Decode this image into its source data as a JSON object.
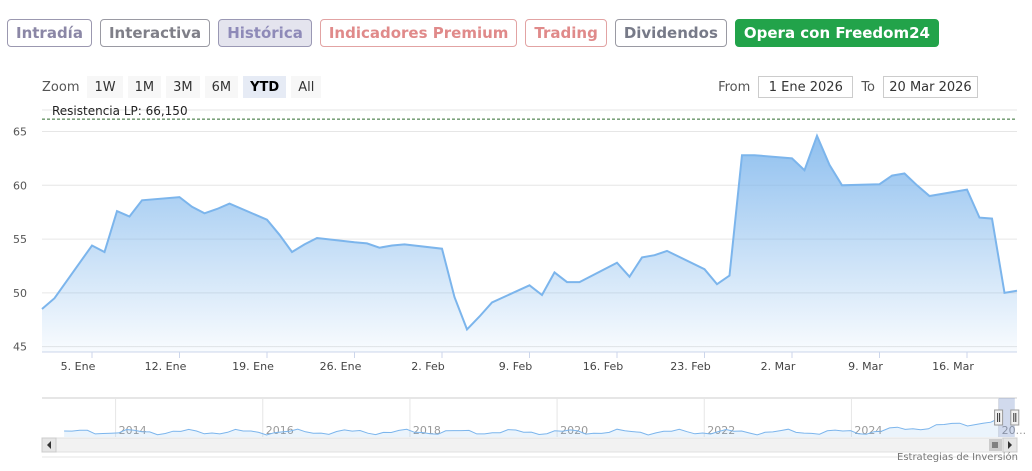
{
  "tabs": [
    {
      "label": "Intradía",
      "cls": "t-intradia"
    },
    {
      "label": "Interactiva",
      "cls": "t-interactiva"
    },
    {
      "label": "Histórica",
      "cls": "t-historica"
    },
    {
      "label": "Indicadores Premium",
      "cls": "t-premium"
    },
    {
      "label": "Trading",
      "cls": "t-trading"
    },
    {
      "label": "Dividendos",
      "cls": "t-dividendos"
    },
    {
      "label": "Opera con Freedom24",
      "cls": "t-freedom"
    }
  ],
  "zoom": {
    "label": "Zoom",
    "buttons": [
      "1W",
      "1M",
      "3M",
      "6M",
      "YTD",
      "All"
    ],
    "active": "YTD"
  },
  "range": {
    "from_label": "From",
    "from_value": "1 Ene 2026",
    "to_label": "To",
    "to_value": "20 Mar 2026"
  },
  "credit": "Estrategias de Inversión",
  "colors": {
    "line": "#7cb5ec",
    "fill_top": "#7cb5ec",
    "resistance": "#2f6b2f",
    "freedom": "#22a34a"
  },
  "chart_data": {
    "type": "area",
    "x": [
      "2026-01-01",
      "2026-01-02",
      "2026-01-05",
      "2026-01-06",
      "2026-01-07",
      "2026-01-08",
      "2026-01-09",
      "2026-01-12",
      "2026-01-13",
      "2026-01-14",
      "2026-01-15",
      "2026-01-16",
      "2026-01-19",
      "2026-01-20",
      "2026-01-21",
      "2026-01-22",
      "2026-01-23",
      "2026-01-26",
      "2026-01-27",
      "2026-01-28",
      "2026-01-29",
      "2026-01-30",
      "2026-02-02",
      "2026-02-03",
      "2026-02-04",
      "2026-02-05",
      "2026-02-06",
      "2026-02-09",
      "2026-02-10",
      "2026-02-11",
      "2026-02-12",
      "2026-02-13",
      "2026-02-16",
      "2026-02-17",
      "2026-02-18",
      "2026-02-19",
      "2026-02-20",
      "2026-02-23",
      "2026-02-24",
      "2026-02-25",
      "2026-02-26",
      "2026-02-27",
      "2026-03-02",
      "2026-03-03",
      "2026-03-04",
      "2026-03-05",
      "2026-03-06",
      "2026-03-09",
      "2026-03-10",
      "2026-03-11",
      "2026-03-12",
      "2026-03-13",
      "2026-03-16",
      "2026-03-17",
      "2026-03-18",
      "2026-03-19",
      "2026-03-20"
    ],
    "values": [
      48.5,
      49.5,
      54.4,
      53.8,
      57.6,
      57.1,
      58.6,
      58.9,
      58.0,
      57.4,
      57.8,
      58.3,
      56.8,
      55.4,
      53.8,
      54.5,
      55.1,
      54.7,
      54.6,
      54.2,
      54.4,
      54.5,
      54.1,
      49.6,
      46.6,
      47.8,
      49.1,
      50.7,
      49.8,
      51.9,
      51.0,
      51.0,
      52.8,
      51.5,
      53.3,
      53.5,
      53.9,
      52.2,
      50.8,
      51.6,
      62.8,
      62.8,
      62.5,
      61.4,
      64.6,
      61.9,
      60.0,
      60.1,
      60.9,
      61.1,
      60.0,
      59.0,
      59.6,
      57.0,
      56.9,
      50.0,
      50.2
    ],
    "xticks": [
      {
        "label": "5. Ene",
        "date": "2026-01-05"
      },
      {
        "label": "12. Ene",
        "date": "2026-01-12"
      },
      {
        "label": "19. Ene",
        "date": "2026-01-19"
      },
      {
        "label": "26. Ene",
        "date": "2026-01-26"
      },
      {
        "label": "2. Feb",
        "date": "2026-02-02"
      },
      {
        "label": "9. Feb",
        "date": "2026-02-09"
      },
      {
        "label": "16. Feb",
        "date": "2026-02-16"
      },
      {
        "label": "23. Feb",
        "date": "2026-02-23"
      },
      {
        "label": "2. Mar",
        "date": "2026-03-02"
      },
      {
        "label": "9. Mar",
        "date": "2026-03-09"
      },
      {
        "label": "16. Mar",
        "date": "2026-03-16"
      }
    ],
    "yticks": [
      45,
      50,
      55,
      60,
      65
    ],
    "ylim": [
      44.5,
      67
    ],
    "xlim": [
      "2026-01-01",
      "2026-03-20"
    ],
    "resistance": {
      "label": "Resistencia LP: 66,150",
      "value": 66.15
    },
    "grid": true,
    "navigator": {
      "years": [
        "2014",
        "2016",
        "2018",
        "2020",
        "2022",
        "2024",
        "20..."
      ],
      "year_positions": [
        2014,
        2016,
        2018,
        2020,
        2022,
        2024,
        2026
      ],
      "xlim": [
        2013,
        2026.25
      ]
    }
  }
}
